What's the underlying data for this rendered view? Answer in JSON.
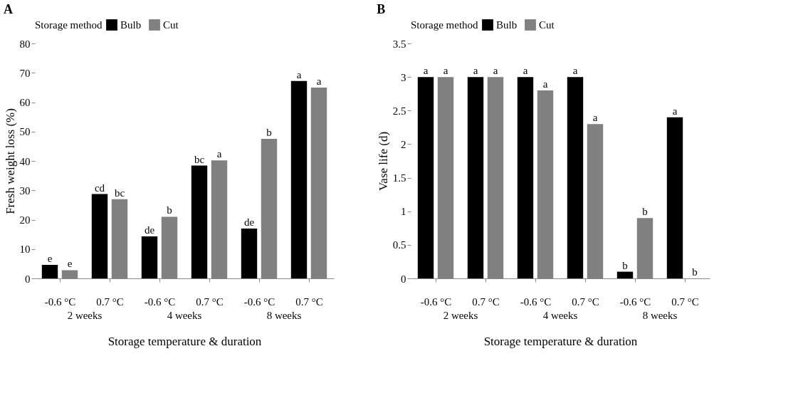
{
  "chart_data": [
    {
      "type": "bar",
      "title": "A",
      "xlabel": "Storage temperature & duration",
      "ylabel": "Fresh weight loss (%)",
      "legend_title": "Storage method",
      "legend": "top",
      "categories": [
        "-0.6 °C",
        "0.7 °C",
        "-0.6 °C",
        "0.7 °C",
        "-0.6 °C",
        "0.7 °C"
      ],
      "series": [
        {
          "name": "Bulb",
          "color": "#000000",
          "values": [
            4.6,
            28.7,
            14.3,
            38.4,
            17,
            67.2
          ],
          "value_labels": [
            "e",
            "cd",
            "de",
            "bc",
            "de",
            "a"
          ]
        },
        {
          "name": "Cut",
          "color": "#808080",
          "values": [
            2.8,
            27,
            21,
            40.2,
            47.5,
            65
          ],
          "value_labels": [
            "e",
            "bc",
            "b",
            "a",
            "b",
            "a"
          ]
        }
      ],
      "annotations": [
        "2 weeks",
        "4 weeks",
        "8 weeks"
      ],
      "ylim": [
        0,
        80
      ],
      "yticks": [
        0,
        10,
        20,
        30,
        40,
        50,
        60,
        70,
        80
      ],
      "grid": false
    },
    {
      "type": "bar",
      "title": "B",
      "xlabel": "Storage temperature & duration",
      "ylabel": "Vase life (d)",
      "legend_title": "Storage method",
      "legend": "top",
      "categories": [
        "-0.6 °C",
        "0.7 °C",
        "-0.6 °C",
        "0.7 °C",
        "-0.6 °C",
        "0.7 °C"
      ],
      "series": [
        {
          "name": "Bulb",
          "color": "#000000",
          "values": [
            3,
            3,
            3,
            3,
            0.1,
            2.4
          ],
          "value_labels": [
            "a",
            "a",
            "a",
            "a",
            "b",
            "a"
          ]
        },
        {
          "name": "Cut",
          "color": "#808080",
          "values": [
            3,
            3,
            2.8,
            2.3,
            0.9,
            0
          ],
          "value_labels": [
            "a",
            "a",
            "a",
            "a",
            "b",
            "b"
          ]
        }
      ],
      "annotations": [
        "2 weeks",
        "4 weeks",
        "8 weeks"
      ],
      "ylim": [
        0,
        3.5
      ],
      "yticks": [
        0,
        0.5,
        1,
        1.5,
        2,
        2.5,
        3,
        3.5
      ],
      "grid": false
    }
  ]
}
